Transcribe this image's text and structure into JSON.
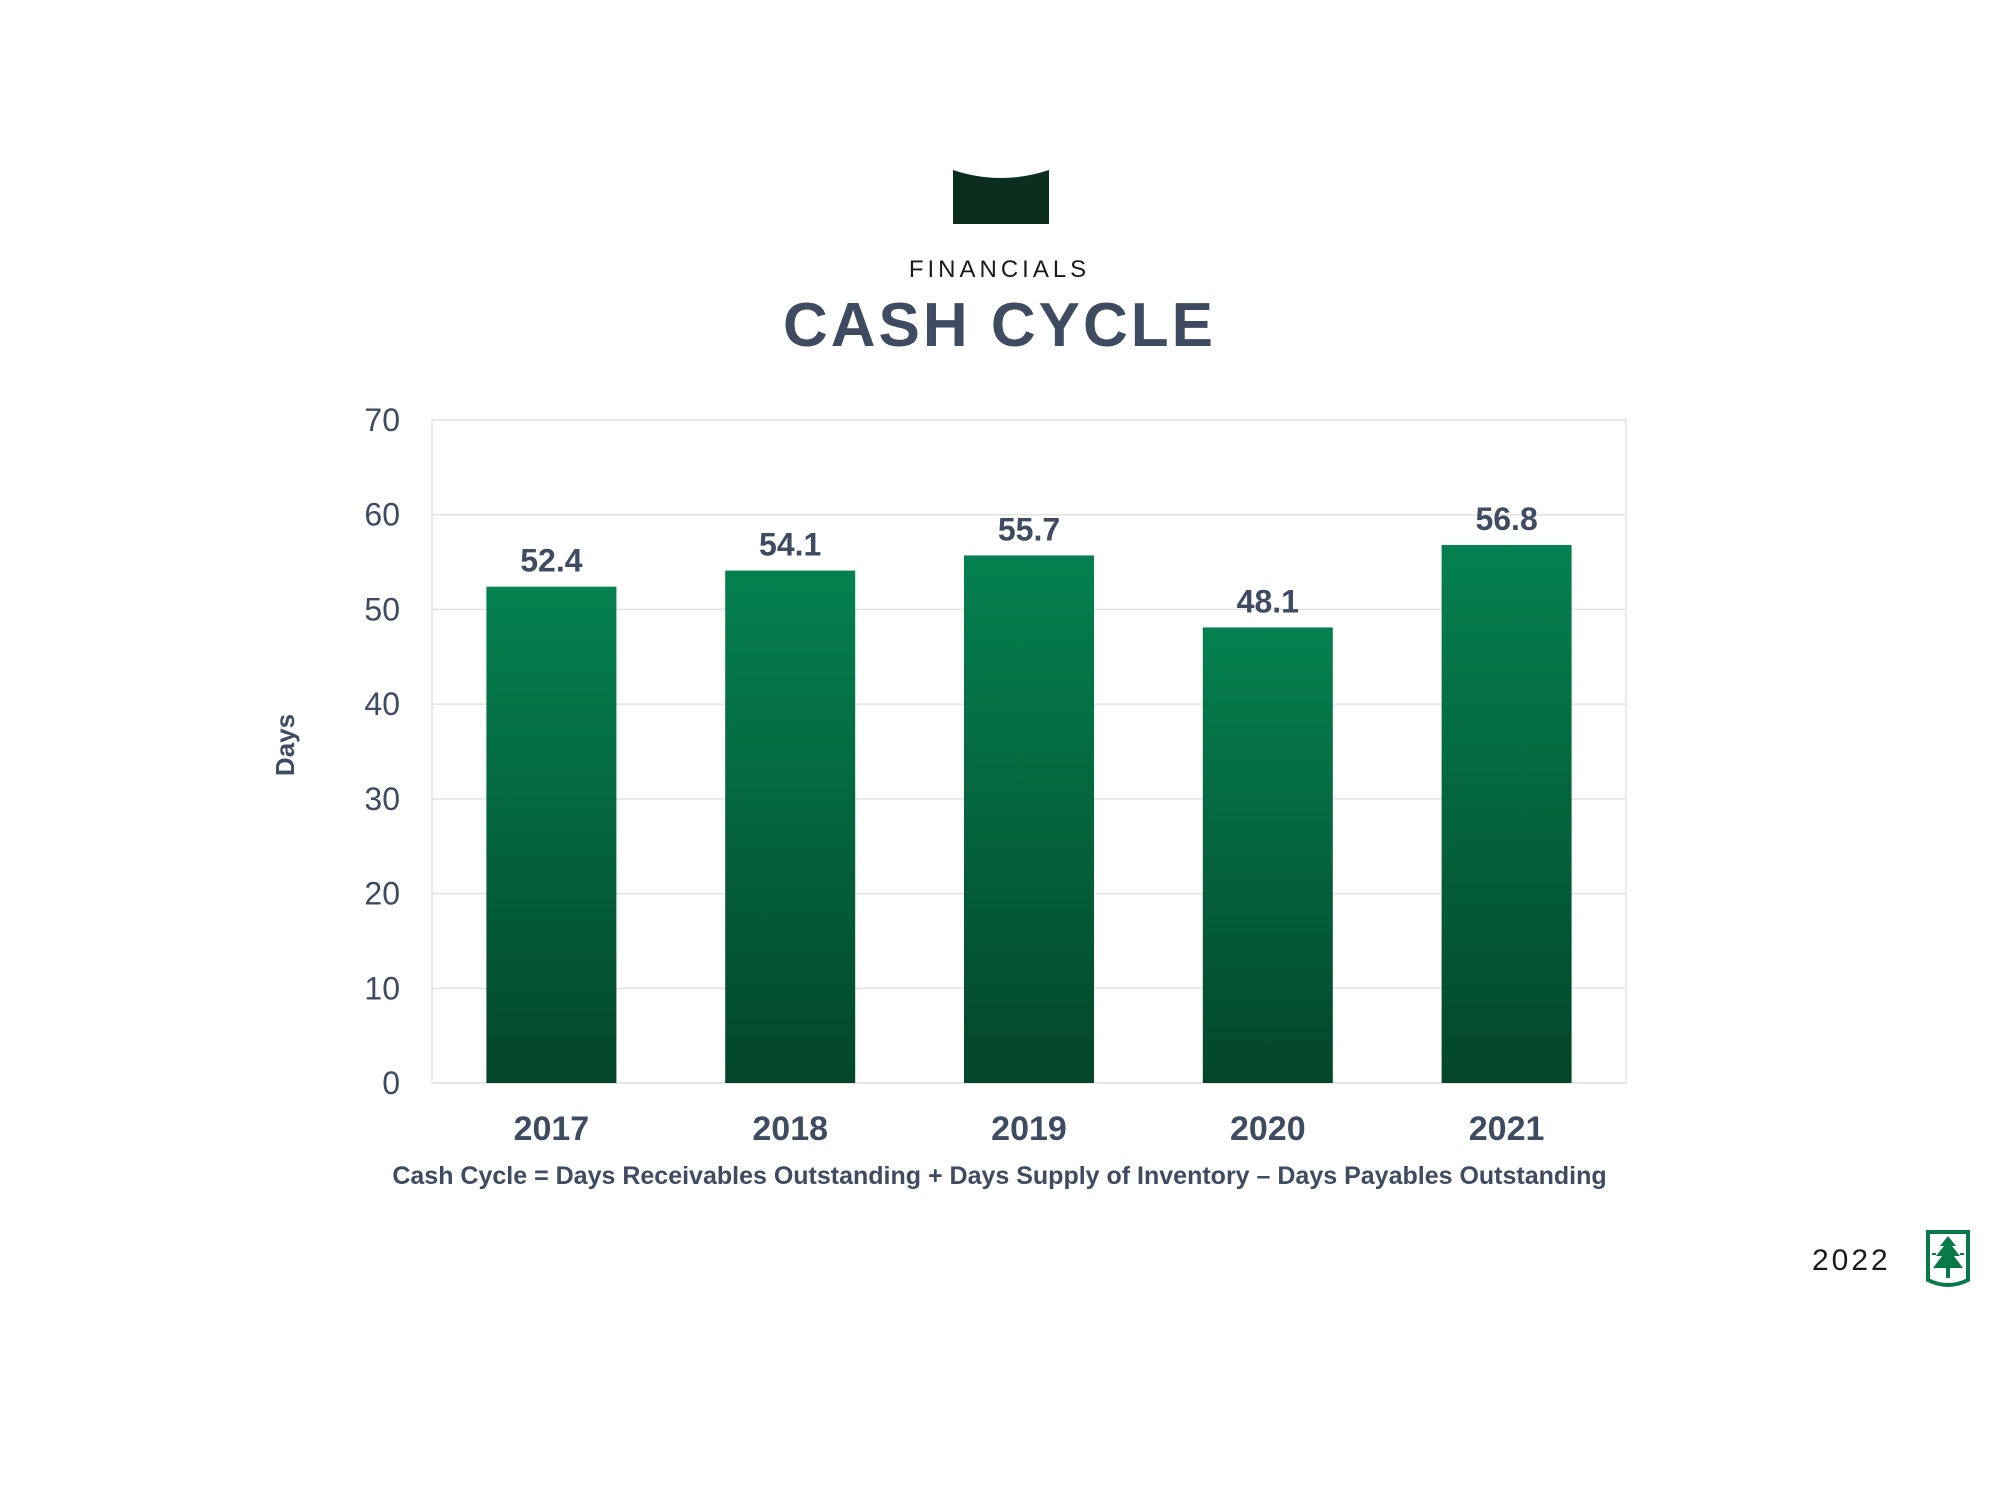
{
  "header": {
    "section_label": "FINANCIALS",
    "title": "CASH CYCLE"
  },
  "chart_data": {
    "type": "bar",
    "categories": [
      "2017",
      "2018",
      "2019",
      "2020",
      "2021"
    ],
    "values": [
      52.4,
      54.1,
      55.7,
      48.1,
      56.8
    ],
    "data_labels": [
      "52.4",
      "54.1",
      "55.7",
      "48.1",
      "56.8"
    ],
    "title": "CASH CYCLE",
    "xlabel": "",
    "ylabel": "Days",
    "ylim": [
      0,
      70
    ],
    "yticks": [
      0,
      10,
      20,
      30,
      40,
      50,
      60,
      70
    ],
    "ytick_labels": [
      "0",
      "10",
      "20",
      "30",
      "40",
      "50",
      "60",
      "70"
    ],
    "grid": true,
    "legend": "none",
    "colors": {
      "bar_top": "#048150",
      "bar_bottom": "#034629",
      "text": "#3e4b61",
      "grid": "#e3e3e3"
    }
  },
  "footnote": "Cash Cycle = Days Receivables Outstanding + Days Supply of Inventory – Days Payables Outstanding",
  "footer": {
    "year": "2022",
    "logo_icon": "tree-logo-icon"
  }
}
